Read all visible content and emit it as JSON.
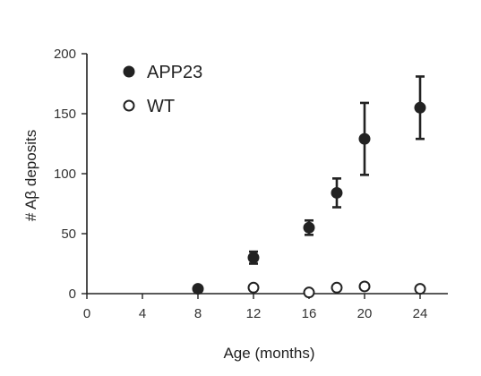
{
  "chart_data": {
    "type": "scatter",
    "xlabel": "Age (months)",
    "ylabel": "# Aβ deposits",
    "xlim": [
      0,
      26
    ],
    "ylim": [
      0,
      200
    ],
    "xticks": [
      0,
      4,
      8,
      12,
      16,
      20,
      24
    ],
    "yticks": [
      0,
      50,
      100,
      150,
      200
    ],
    "grid": false,
    "legend_position": "top-left",
    "series": [
      {
        "name": "APP23",
        "marker": "filled-circle",
        "color": "#222222",
        "points": [
          {
            "x": 8,
            "y": 4,
            "err": 0
          },
          {
            "x": 12,
            "y": 30,
            "err": 5
          },
          {
            "x": 16,
            "y": 55,
            "err": 6
          },
          {
            "x": 18,
            "y": 84,
            "err": 12
          },
          {
            "x": 20,
            "y": 129,
            "err": 30
          },
          {
            "x": 24,
            "y": 155,
            "err": 26
          }
        ]
      },
      {
        "name": "WT",
        "marker": "open-circle",
        "color": "#222222",
        "points": [
          {
            "x": 12,
            "y": 5
          },
          {
            "x": 16,
            "y": 1
          },
          {
            "x": 18,
            "y": 5
          },
          {
            "x": 20,
            "y": 6
          },
          {
            "x": 24,
            "y": 4
          }
        ]
      }
    ]
  }
}
